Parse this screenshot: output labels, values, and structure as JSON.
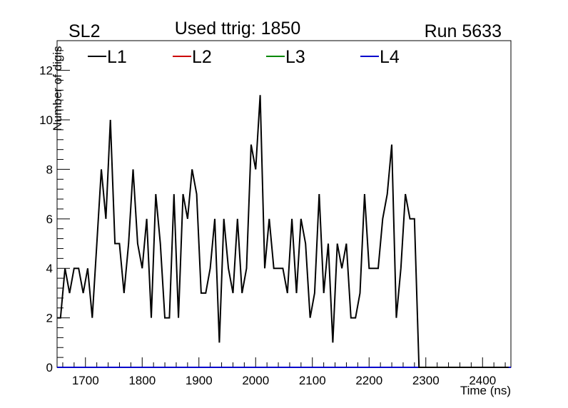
{
  "chart_data": {
    "type": "line",
    "labels": {
      "left": "SL2",
      "center": "Used ttrig: 1850",
      "right": "Run 5633"
    },
    "xlabel": "Time (ns)",
    "ylabel": "Number of digis",
    "xlim": [
      1650,
      2450
    ],
    "ylim": [
      0,
      13.2
    ],
    "xticks": [
      1700,
      1800,
      1900,
      2000,
      2100,
      2200,
      2300,
      2400
    ],
    "yticks": [
      0,
      2,
      4,
      6,
      8,
      10,
      12
    ],
    "grid": false,
    "legend_position": "top-left",
    "series": [
      {
        "name": "L1",
        "color": "#000000",
        "x": [
          1650,
          1656,
          1664,
          1672,
          1680,
          1688,
          1696,
          1704,
          1712,
          1720,
          1728,
          1736,
          1744,
          1752,
          1760,
          1768,
          1776,
          1784,
          1792,
          1800,
          1808,
          1816,
          1824,
          1832,
          1840,
          1848,
          1856,
          1864,
          1872,
          1880,
          1888,
          1896,
          1904,
          1912,
          1920,
          1928,
          1936,
          1944,
          1952,
          1960,
          1968,
          1976,
          1984,
          1992,
          2000,
          2008,
          2016,
          2024,
          2032,
          2040,
          2048,
          2056,
          2064,
          2072,
          2080,
          2088,
          2096,
          2104,
          2112,
          2120,
          2128,
          2136,
          2144,
          2152,
          2160,
          2168,
          2176,
          2184,
          2192,
          2200,
          2208,
          2216,
          2224,
          2232,
          2240,
          2248,
          2256,
          2264,
          2272,
          2280,
          2288,
          2296,
          2304,
          2312,
          2320,
          2328,
          2336,
          2344,
          2352,
          2360,
          2368,
          2376,
          2384,
          2392,
          2400,
          2408,
          2416,
          2424,
          2432,
          2440,
          2446
        ],
        "y": [
          2,
          2,
          4,
          3,
          4,
          4,
          3,
          4,
          2,
          5,
          8,
          6,
          10,
          5,
          5,
          3,
          5,
          8,
          5,
          4,
          6,
          2,
          7,
          5,
          2,
          2,
          7,
          2,
          7,
          6,
          8,
          7,
          3,
          3,
          4,
          6,
          1,
          6,
          4,
          3,
          6,
          3,
          4,
          9,
          8,
          11,
          4,
          6,
          4,
          4,
          4,
          3,
          6,
          3,
          6,
          5,
          2,
          3,
          7,
          3,
          5,
          1,
          5,
          4,
          5,
          2,
          2,
          3,
          7,
          4,
          4,
          4,
          6,
          7,
          9,
          2,
          4,
          7,
          6,
          6,
          0,
          0,
          0,
          0,
          0,
          0,
          0,
          0,
          0,
          0,
          0,
          0,
          0,
          0,
          0,
          0,
          0,
          0,
          0,
          0,
          0
        ]
      },
      {
        "name": "L2",
        "color": "#cc0000",
        "x": [
          1650,
          2450
        ],
        "y": [
          0,
          0
        ]
      },
      {
        "name": "L3",
        "color": "#008800",
        "x": [
          1650,
          2450
        ],
        "y": [
          0,
          0
        ]
      },
      {
        "name": "L4",
        "color": "#0000cc",
        "x": [
          1650,
          2450
        ],
        "y": [
          0,
          0
        ]
      }
    ]
  }
}
